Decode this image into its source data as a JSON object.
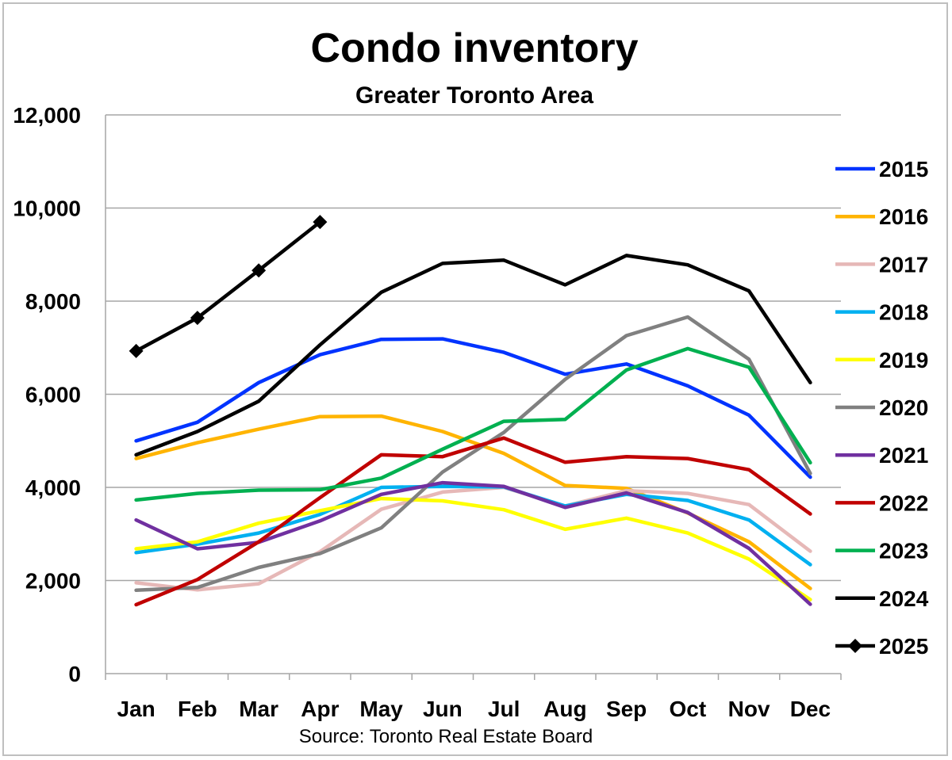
{
  "chart_data": {
    "type": "line",
    "title": "Condo inventory",
    "subtitle": "Greater Toronto Area",
    "source": "Source: Toronto Real Estate Board",
    "xlabel": "",
    "ylabel": "",
    "categories": [
      "Jan",
      "Feb",
      "Mar",
      "Apr",
      "May",
      "Jun",
      "Jul",
      "Aug",
      "Sep",
      "Oct",
      "Nov",
      "Dec"
    ],
    "ylim": [
      0,
      12000
    ],
    "yticks": [
      0,
      2000,
      4000,
      6000,
      8000,
      10000,
      12000
    ],
    "ytick_labels": [
      "0",
      "2,000",
      "4,000",
      "6,000",
      "8,000",
      "10,000",
      "12,000"
    ],
    "grid": "horizontal",
    "legend_position": "right",
    "series": [
      {
        "name": "2015",
        "color": "#0033ff",
        "values": [
          5000,
          5400,
          6250,
          6850,
          7180,
          7190,
          6900,
          6430,
          6650,
          6180,
          5550,
          4220
        ]
      },
      {
        "name": "2016",
        "color": "#ffb400",
        "values": [
          4620,
          4960,
          5250,
          5520,
          5530,
          5200,
          4730,
          4040,
          3980,
          3450,
          2830,
          1830
        ]
      },
      {
        "name": "2017",
        "color": "#e6b8b7",
        "values": [
          1950,
          1800,
          1930,
          2620,
          3530,
          3900,
          4000,
          3600,
          3930,
          3870,
          3630,
          2630
        ]
      },
      {
        "name": "2018",
        "color": "#00b0f0",
        "values": [
          2600,
          2780,
          3020,
          3420,
          4000,
          4020,
          4010,
          3600,
          3850,
          3720,
          3300,
          2340
        ]
      },
      {
        "name": "2019",
        "color": "#ffff00",
        "values": [
          2680,
          2830,
          3230,
          3500,
          3760,
          3710,
          3520,
          3100,
          3340,
          3020,
          2460,
          1590
        ]
      },
      {
        "name": "2020",
        "color": "#808080",
        "values": [
          1790,
          1850,
          2280,
          2580,
          3130,
          4330,
          5180,
          6320,
          7260,
          7660,
          6750,
          4300
        ]
      },
      {
        "name": "2021",
        "color": "#7030a0",
        "values": [
          3300,
          2680,
          2820,
          3280,
          3850,
          4100,
          4020,
          3570,
          3880,
          3460,
          2690,
          1490
        ]
      },
      {
        "name": "2022",
        "color": "#c00000",
        "values": [
          1480,
          2020,
          2830,
          3780,
          4700,
          4660,
          5060,
          4540,
          4660,
          4620,
          4380,
          3430
        ]
      },
      {
        "name": "2023",
        "color": "#00b050",
        "values": [
          3730,
          3870,
          3940,
          3950,
          4200,
          4820,
          5420,
          5460,
          6520,
          6980,
          6580,
          4530
        ]
      },
      {
        "name": "2024",
        "color": "#000000",
        "values": [
          4700,
          5200,
          5850,
          7060,
          8190,
          8810,
          8880,
          8350,
          8980,
          8780,
          8220,
          6250
        ]
      },
      {
        "name": "2025",
        "color": "#000000",
        "marker": "diamond",
        "values": [
          6930,
          7640,
          8660,
          9700,
          null,
          null,
          null,
          null,
          null,
          null,
          null,
          null
        ]
      }
    ]
  }
}
